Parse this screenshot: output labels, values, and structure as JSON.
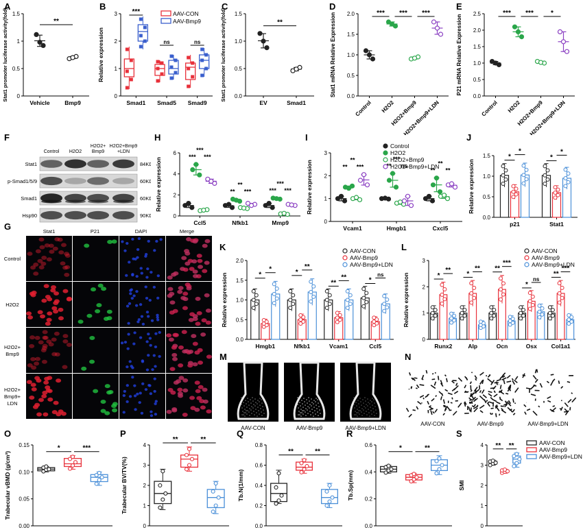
{
  "colors": {
    "black": "#222222",
    "red": "#e8303a",
    "blue": "#3a5fcd",
    "green": "#2aa64a",
    "purple": "#8a3fc2",
    "lightblue": "#4a8fd8"
  },
  "panel_labels": [
    "A",
    "B",
    "C",
    "D",
    "E",
    "F",
    "G",
    "H",
    "I",
    "J",
    "K",
    "L",
    "M",
    "N",
    "O",
    "P",
    "Q",
    "R",
    "S"
  ],
  "chart_data": [
    {
      "id": "A",
      "type": "scatter",
      "ylabel": "Stat1 promoter luciferase activity(fold)",
      "categories": [
        "Vehicle",
        "Bmp9"
      ],
      "ylim": [
        0,
        1.5
      ],
      "yticks": [
        0,
        0.5,
        1.0,
        1.5
      ],
      "series": [
        {
          "values": [
            [
              1.12,
              0.92,
              0.98
            ],
            [
              0.68,
              0.72,
              0.7
            ]
          ],
          "colors": [
            "#222222",
            "#222222"
          ],
          "markers": [
            "filled",
            "open"
          ]
        }
      ],
      "sig": [
        {
          "from": 0,
          "to": 1,
          "label": "**"
        }
      ]
    },
    {
      "id": "B",
      "type": "box",
      "ylabel": "Relative expression",
      "categories": [
        "Smad1",
        "Smad5",
        "Smad9"
      ],
      "ylim": [
        0,
        3
      ],
      "yticks": [
        0,
        1,
        2,
        3
      ],
      "legend": [
        "AAV-CON",
        "AAV-Bmp9"
      ],
      "groups": [
        {
          "cat": 0,
          "series": 0,
          "q": [
            0.25,
            0.7,
            1.0,
            1.35,
            1.8
          ],
          "points": [
            0.3,
            0.6,
            0.9,
            1.3,
            1.7
          ]
        },
        {
          "cat": 0,
          "series": 1,
          "q": [
            1.7,
            2.0,
            2.35,
            2.6,
            2.9
          ],
          "points": [
            1.8,
            2.0,
            2.2,
            2.5,
            2.8
          ]
        },
        {
          "cat": 1,
          "series": 0,
          "q": [
            0.5,
            0.75,
            1.0,
            1.15,
            1.3
          ],
          "points": [
            0.55,
            0.8,
            1.0,
            1.2,
            1.25
          ]
        },
        {
          "cat": 1,
          "series": 1,
          "q": [
            0.6,
            0.8,
            1.0,
            1.3,
            1.5
          ],
          "points": [
            0.65,
            0.85,
            1.05,
            1.3,
            1.45
          ]
        },
        {
          "cat": 2,
          "series": 0,
          "q": [
            0.3,
            0.6,
            1.05,
            1.2,
            1.5
          ],
          "points": [
            0.35,
            0.7,
            1.0,
            1.2,
            1.4
          ]
        },
        {
          "cat": 2,
          "series": 1,
          "q": [
            0.7,
            1.0,
            1.3,
            1.5,
            1.75
          ],
          "points": [
            0.75,
            1.0,
            1.3,
            1.5,
            1.7
          ]
        }
      ],
      "sig": [
        {
          "cat": 0,
          "label": "***"
        },
        {
          "cat": 1,
          "label": "ns"
        },
        {
          "cat": 2,
          "label": "ns"
        }
      ]
    },
    {
      "id": "C",
      "type": "scatter",
      "ylabel": "Stat1 promoter luciferase activity(fold)",
      "categories": [
        "EV",
        "Smad1"
      ],
      "ylim": [
        0,
        1.5
      ],
      "yticks": [
        0,
        0.5,
        1.0,
        1.5
      ],
      "series": [
        {
          "values": [
            [
              1.14,
              0.88,
              1.0
            ],
            [
              0.46,
              0.52,
              0.49
            ]
          ]
        }
      ],
      "sig": [
        {
          "from": 0,
          "to": 1,
          "label": "**"
        }
      ]
    },
    {
      "id": "D",
      "type": "scatter",
      "ylabel": "Stat1 mRNA Relative Expression",
      "categories": [
        "Control",
        "H2O2",
        "H2O2+Bmp9",
        "H2O2+Bmp9+LDN"
      ],
      "ylim": [
        0,
        2.0
      ],
      "yticks": [
        0,
        0.5,
        1.0,
        1.5,
        2.0
      ],
      "series": [
        {
          "values": [
            [
              1.1,
              0.9,
              1.0
            ],
            [
              1.8,
              1.7,
              1.75
            ],
            [
              0.9,
              0.95,
              0.92
            ],
            [
              1.8,
              1.5,
              1.65
            ]
          ]
        }
      ],
      "sig": [
        {
          "from": 0,
          "to": 1,
          "label": "***"
        },
        {
          "from": 1,
          "to": 2,
          "label": "***"
        },
        {
          "from": 2,
          "to": 3,
          "label": "***"
        }
      ]
    },
    {
      "id": "E",
      "type": "scatter",
      "ylabel": "P21 mRNA Relative Expression",
      "categories": [
        "Control",
        "H2O2",
        "H2O2+Bmp9",
        "H2O2+Bmp9+LDN"
      ],
      "ylim": [
        0,
        2.5
      ],
      "yticks": [
        0,
        0.5,
        1.0,
        1.5,
        2.0,
        2.5
      ],
      "series": [
        {
          "values": [
            [
              1.05,
              0.95,
              1.0
            ],
            [
              2.1,
              1.8,
              1.95
            ],
            [
              1.05,
              1.0,
              1.02
            ],
            [
              1.95,
              1.35,
              1.65
            ]
          ]
        }
      ],
      "sig": [
        {
          "from": 0,
          "to": 1,
          "label": "***"
        },
        {
          "from": 1,
          "to": 2,
          "label": "***"
        },
        {
          "from": 2,
          "to": 3,
          "label": "*"
        }
      ]
    },
    {
      "id": "H",
      "type": "scatter-grouped",
      "ylabel": "Relative expression",
      "categories": [
        "Ccl5",
        "Nfkb1",
        "Mmp9"
      ],
      "ylim": [
        0,
        6
      ],
      "yticks": [
        0,
        2,
        4,
        6
      ],
      "values": [
        [
          [
            1.0,
            0.8,
            1.2
          ],
          [
            4.4,
            3.9,
            4.9
          ],
          [
            0.5,
            0.6,
            0.55
          ],
          [
            3.5,
            3.1,
            3.3
          ]
        ],
        [
          [
            1.0,
            0.8,
            1.1
          ],
          [
            1.6,
            1.4,
            1.5
          ],
          [
            0.8,
            0.7,
            0.75
          ],
          [
            1.2,
            1.1,
            1.0
          ]
        ],
        [
          [
            1.0,
            0.8,
            1.2
          ],
          [
            1.7,
            1.6,
            1.65
          ],
          [
            0.2,
            0.15,
            0.25
          ],
          [
            1.1,
            1.0,
            1.05
          ]
        ]
      ],
      "sig": [
        {
          "cat": 0,
          "labels": [
            "***",
            "***",
            "***",
            "***"
          ]
        },
        {
          "cat": 1,
          "labels": [
            "**",
            "**",
            "***",
            "*"
          ]
        },
        {
          "cat": 2,
          "labels": [
            "***",
            "***",
            "***",
            "***"
          ]
        }
      ]
    },
    {
      "id": "I",
      "type": "scatter-grouped",
      "ylabel": "Relative expression",
      "categories": [
        "Vcam1",
        "Hmgb1",
        "Cxcl5"
      ],
      "ylim": [
        0,
        3
      ],
      "yticks": [
        0,
        1,
        2,
        3
      ],
      "legend": [
        "Control",
        "H2O2",
        "H2O2+Bmp9",
        "H2O2+Bmp9+LDN"
      ],
      "values": [
        [
          [
            1.0,
            0.9,
            1.1
          ],
          [
            1.5,
            1.55,
            1.45
          ],
          [
            1.0,
            0.95,
            1.05
          ],
          [
            1.8,
            1.6,
            2.05
          ]
        ],
        [
          [
            1.0,
            0.98,
            1.02
          ],
          [
            1.8,
            1.5,
            2.1
          ],
          [
            0.8,
            0.75,
            0.85
          ],
          [
            0.9,
            0.7,
            1.1
          ]
        ],
        [
          [
            1.0,
            0.9,
            1.1
          ],
          [
            1.6,
            1.3,
            1.9
          ],
          [
            1.1,
            1.0,
            1.15
          ],
          [
            1.6,
            1.5,
            1.65
          ]
        ]
      ],
      "sig": [
        {
          "cat": 0,
          "labels": [
            "**",
            "**",
            "***"
          ]
        },
        {
          "cat": 1,
          "labels": [
            "**",
            "***",
            "ns"
          ]
        },
        {
          "cat": 2,
          "labels": [
            "**",
            "**",
            "**"
          ]
        }
      ]
    },
    {
      "id": "J",
      "type": "bar-dot",
      "ylabel": "Relative expression",
      "categories": [
        "p21",
        "Stat1"
      ],
      "ylim": [
        0,
        1.5
      ],
      "yticks": [
        0,
        0.5,
        1.0,
        1.5
      ],
      "bars": [
        [
          1.02,
          0.62,
          1.03
        ],
        [
          1.02,
          0.6,
          0.95
        ]
      ],
      "sig": [
        {
          "cat": 0,
          "labels": [
            "*",
            "*"
          ]
        },
        {
          "cat": 1,
          "labels": [
            "*",
            "*"
          ]
        }
      ]
    },
    {
      "id": "K",
      "type": "bar-dot",
      "ylabel": "Relative expression",
      "categories": [
        "Hmgb1",
        "Nfkb1",
        "Vcam1",
        "Ccl5"
      ],
      "ylim": [
        0,
        2.0
      ],
      "yticks": [
        0,
        0.5,
        1.0,
        1.5,
        2.0
      ],
      "legend": [
        "AAV-CON",
        "AAV-Bmp9",
        "AAV-Bmp9+LDN"
      ],
      "bars": [
        [
          1.0,
          0.4,
          1.15
        ],
        [
          1.0,
          0.5,
          1.2
        ],
        [
          1.0,
          0.55,
          1.0
        ],
        [
          1.05,
          0.45,
          0.9
        ]
      ],
      "sig": [
        {
          "cat": 0,
          "labels": [
            "*",
            "*"
          ]
        },
        {
          "cat": 1,
          "labels": [
            "*",
            "**"
          ]
        },
        {
          "cat": 2,
          "labels": [
            "**",
            "**"
          ]
        },
        {
          "cat": 3,
          "labels": [
            "*",
            "ns"
          ]
        }
      ]
    },
    {
      "id": "L",
      "type": "bar-dot",
      "ylabel": "Relative expression",
      "categories": [
        "Runx2",
        "Alp",
        "Ocn",
        "Osx",
        "Col1a1"
      ],
      "ylim": [
        0,
        3
      ],
      "yticks": [
        0,
        1,
        2,
        3
      ],
      "legend": [
        "AAV-CON",
        "AAV-Bmp9",
        "AAV-Bmp9+LDN"
      ],
      "bars": [
        [
          1.0,
          1.7,
          0.8
        ],
        [
          1.0,
          1.75,
          0.55
        ],
        [
          1.0,
          1.9,
          0.7
        ],
        [
          1.0,
          1.45,
          1.05
        ],
        [
          1.0,
          1.75,
          0.75
        ]
      ],
      "sig": [
        {
          "cat": 0,
          "labels": [
            "*",
            "**"
          ]
        },
        {
          "cat": 1,
          "labels": [
            "*",
            "**"
          ]
        },
        {
          "cat": 2,
          "labels": [
            "**",
            "***"
          ]
        },
        {
          "cat": 3,
          "labels": [
            "*",
            "ns"
          ]
        },
        {
          "cat": 4,
          "labels": [
            "**",
            "***"
          ]
        }
      ]
    },
    {
      "id": "O",
      "type": "box3",
      "ylabel": "Trabecular vBMD (g/cm³)",
      "ylim": [
        0,
        0.15
      ],
      "yticks": [
        0.0,
        0.05,
        0.1,
        0.15
      ],
      "groups": [
        {
          "q": [
            0.1,
            0.102,
            0.105,
            0.108,
            0.11
          ],
          "points": [
            0.101,
            0.104,
            0.105,
            0.108,
            0.11
          ]
        },
        {
          "q": [
            0.105,
            0.11,
            0.115,
            0.125,
            0.13
          ],
          "points": [
            0.106,
            0.112,
            0.118,
            0.124,
            0.128
          ]
        },
        {
          "q": [
            0.075,
            0.082,
            0.09,
            0.095,
            0.1
          ],
          "points": [
            0.078,
            0.085,
            0.09,
            0.094,
            0.098
          ]
        }
      ],
      "sig": [
        "*",
        "***"
      ]
    },
    {
      "id": "P",
      "type": "box3",
      "ylabel": "Trabecular BV/TV(%)",
      "ylim": [
        0,
        4
      ],
      "yticks": [
        0,
        1,
        2,
        3,
        4
      ],
      "groups": [
        {
          "q": [
            0.8,
            1.1,
            1.6,
            2.2,
            2.8
          ],
          "points": [
            0.9,
            1.3,
            1.6,
            2.0,
            2.7
          ]
        },
        {
          "q": [
            2.7,
            2.9,
            3.3,
            3.5,
            3.9
          ],
          "points": [
            2.8,
            3.0,
            3.3,
            3.5,
            3.8
          ]
        },
        {
          "q": [
            0.6,
            0.9,
            1.4,
            1.8,
            2.2
          ],
          "points": [
            0.7,
            1.0,
            1.4,
            1.7,
            2.1
          ]
        }
      ],
      "sig": [
        "**",
        "**"
      ]
    },
    {
      "id": "Q",
      "type": "box3",
      "ylabel": "Tb.N(1/mm)",
      "ylim": [
        0,
        0.8
      ],
      "yticks": [
        0.0,
        0.2,
        0.4,
        0.6,
        0.8
      ],
      "groups": [
        {
          "q": [
            0.22,
            0.24,
            0.32,
            0.42,
            0.55
          ],
          "points": [
            0.22,
            0.25,
            0.3,
            0.38,
            0.52
          ]
        },
        {
          "q": [
            0.52,
            0.55,
            0.58,
            0.63,
            0.66
          ],
          "points": [
            0.53,
            0.56,
            0.59,
            0.62,
            0.65
          ]
        },
        {
          "q": [
            0.18,
            0.22,
            0.28,
            0.36,
            0.42
          ],
          "points": [
            0.2,
            0.24,
            0.28,
            0.34,
            0.4
          ]
        }
      ],
      "sig": [
        "**",
        "**"
      ]
    },
    {
      "id": "R",
      "type": "box3",
      "ylabel": "Tb.Sp(mm)",
      "ylim": [
        0,
        0.6
      ],
      "yticks": [
        0.0,
        0.2,
        0.4,
        0.6
      ],
      "groups": [
        {
          "q": [
            0.39,
            0.4,
            0.42,
            0.44,
            0.45
          ],
          "points": [
            0.395,
            0.41,
            0.42,
            0.435,
            0.445
          ]
        },
        {
          "q": [
            0.32,
            0.34,
            0.36,
            0.38,
            0.39
          ],
          "points": [
            0.33,
            0.345,
            0.36,
            0.375,
            0.385
          ]
        },
        {
          "q": [
            0.38,
            0.41,
            0.45,
            0.49,
            0.52
          ],
          "points": [
            0.39,
            0.42,
            0.45,
            0.48,
            0.5
          ]
        }
      ],
      "sig": [
        "*",
        "**"
      ]
    },
    {
      "id": "S",
      "type": "box3",
      "ylabel": "SMI",
      "ylim": [
        0,
        4
      ],
      "yticks": [
        0,
        1,
        2,
        3,
        4
      ],
      "legend": [
        "AAV-CON",
        "AAV-Bmp9",
        "AAV-Bmp9+LDN"
      ],
      "groups": [
        {
          "q": [
            3.0,
            3.05,
            3.1,
            3.2,
            3.25
          ],
          "points": [
            3.0,
            3.08,
            3.12,
            3.18,
            3.22
          ]
        },
        {
          "q": [
            2.6,
            2.65,
            2.7,
            2.75,
            2.8
          ],
          "points": [
            2.62,
            2.68,
            2.7,
            2.74,
            2.78
          ]
        },
        {
          "q": [
            2.9,
            3.1,
            3.3,
            3.45,
            3.6
          ],
          "points": [
            2.95,
            3.1,
            3.3,
            3.45,
            3.55
          ]
        }
      ],
      "sig": [
        "**",
        "**"
      ]
    }
  ],
  "blot": {
    "columns": [
      "Control",
      "H2O2",
      "H2O2+\nBmp9",
      "H2O2+Bmp9\n+LDN"
    ],
    "rows": [
      {
        "name": "Stat1",
        "kda": "84KD"
      },
      {
        "name": "p-Smad1/5/9",
        "kda": "60KD"
      },
      {
        "name": "Smad1",
        "kda": "60KD"
      },
      {
        "name": "Hsp90",
        "kda": "90KD"
      }
    ]
  },
  "if_grid": {
    "columns": [
      "Stat1",
      "P21",
      "DAPI",
      "Merge"
    ],
    "rows": [
      "Control",
      "H2O2",
      "H2O2+\nBmp9",
      "H2O2+\nBmp9+\nLDN"
    ]
  },
  "microct": {
    "M": [
      "AAV-CON",
      "AAV-Bmp9",
      "AAV-Bmp9+LDN"
    ],
    "N": [
      "AAV-CON",
      "AAV-Bmp9",
      "AAV-Bmp9+LDN"
    ]
  }
}
